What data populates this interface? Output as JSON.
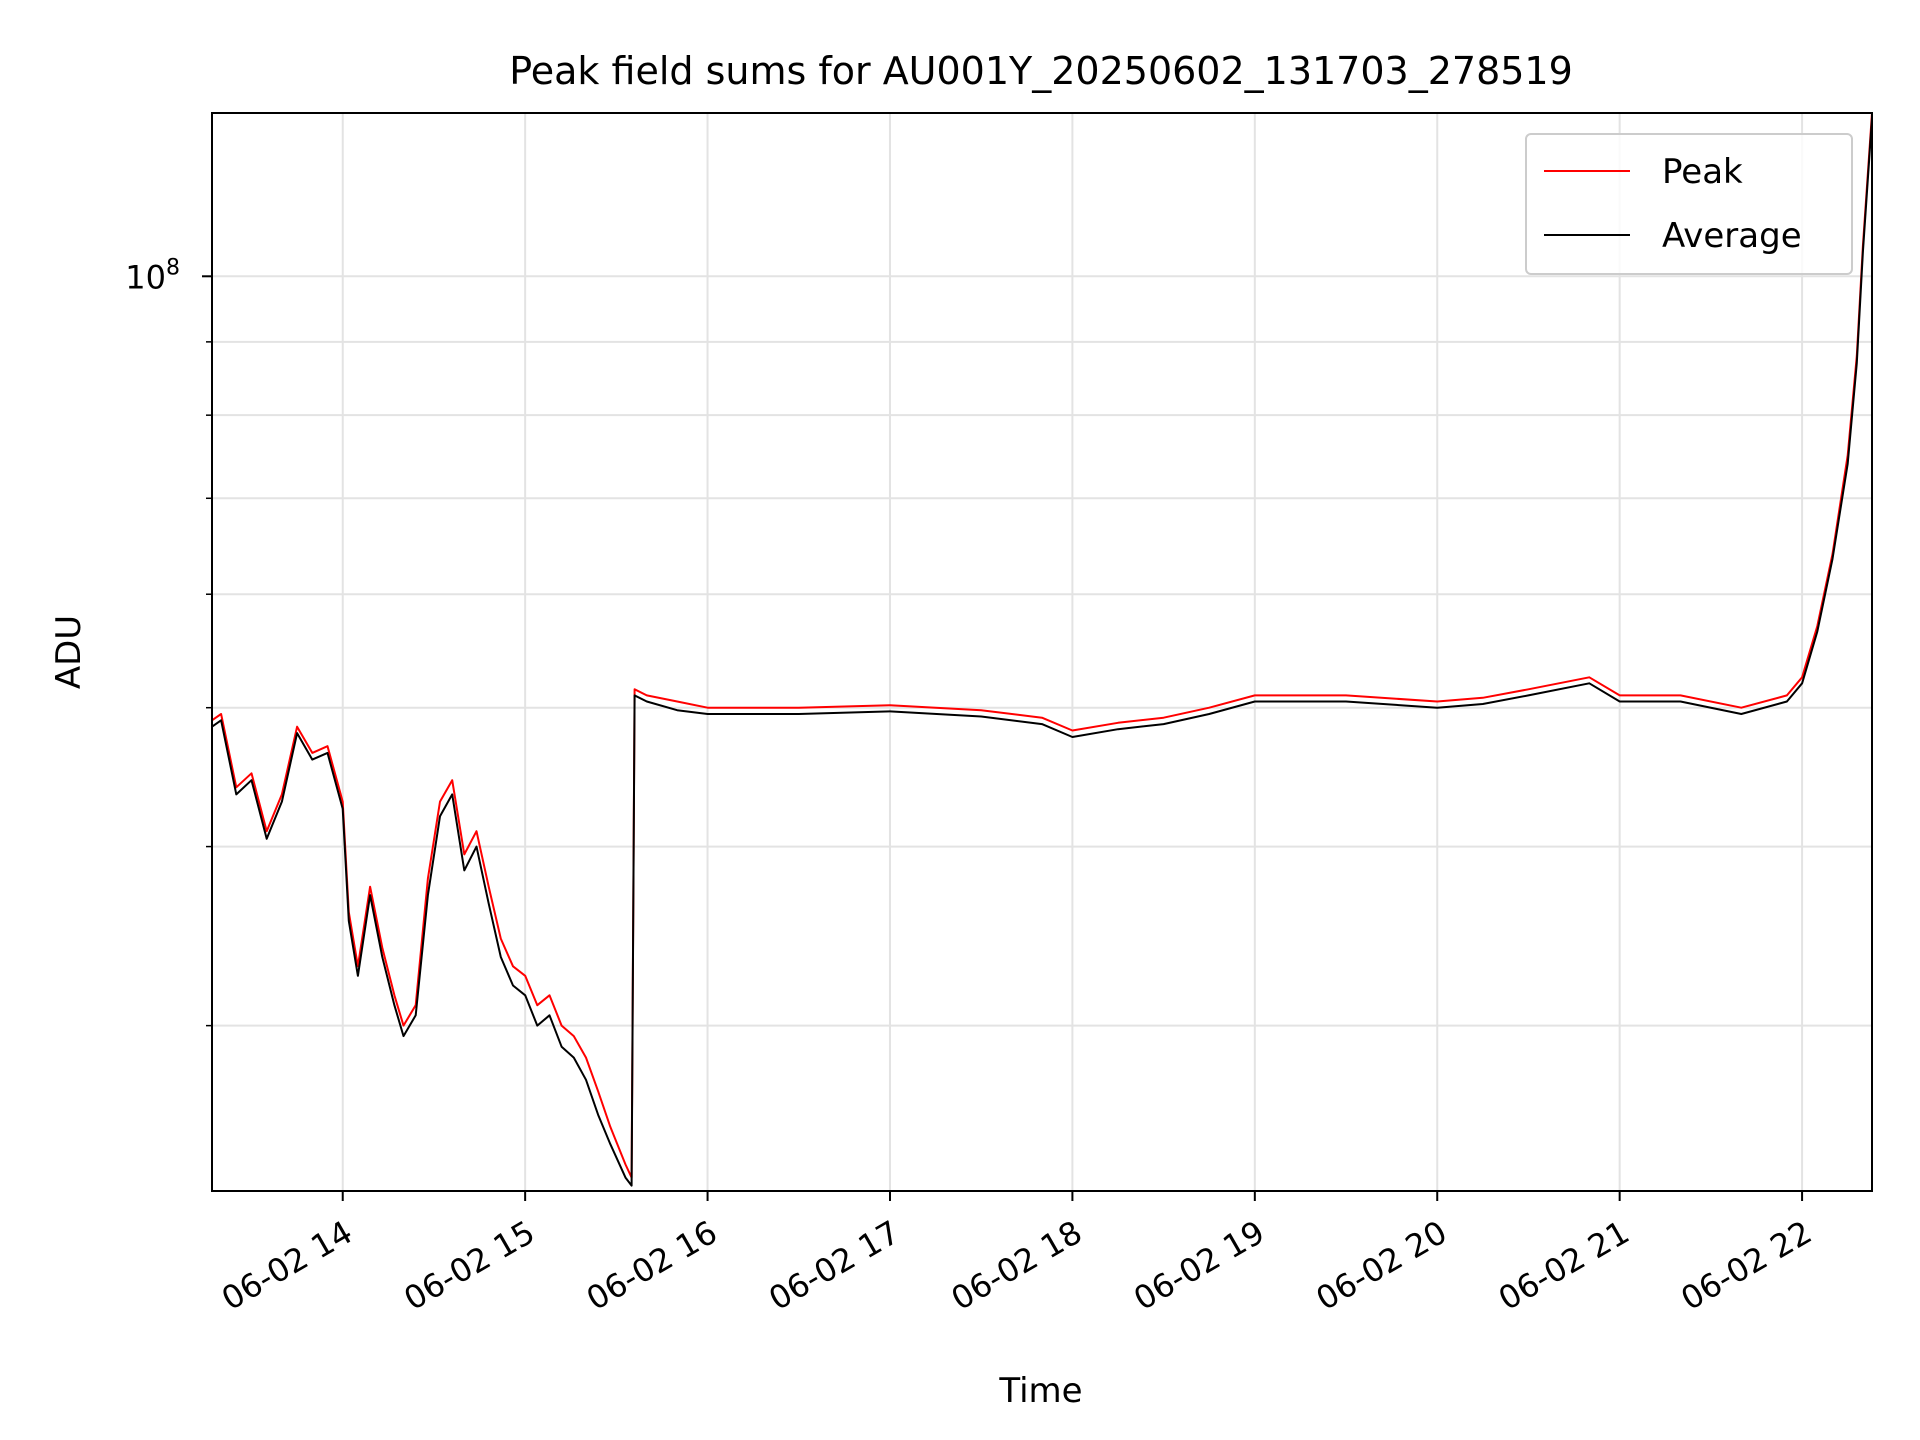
{
  "chart_data": {
    "type": "line",
    "title": "Peak field sums for AU001Y_20250602_131703_278519",
    "xlabel": "Time",
    "ylabel": "ADU",
    "yscale": "log",
    "xlim": [
      "2025-06-02T13:17",
      "2025-06-02T22:23"
    ],
    "ylim": [
      23000000,
      130000000
    ],
    "x_ticks": [
      "2025-06-02T14:00",
      "2025-06-02T15:00",
      "2025-06-02T16:00",
      "2025-06-02T17:00",
      "2025-06-02T18:00",
      "2025-06-02T19:00",
      "2025-06-02T20:00",
      "2025-06-02T21:00",
      "2025-06-02T22:00"
    ],
    "x_tick_labels": [
      "06-02 14",
      "06-02 15",
      "06-02 16",
      "06-02 17",
      "06-02 18",
      "06-02 19",
      "06-02 20",
      "06-02 21",
      "06-02 22"
    ],
    "y_tick_labels": [
      {
        "value": 100000000,
        "base": "10",
        "exp": "8"
      }
    ],
    "grid": true,
    "legend_position": "top-right",
    "series": [
      {
        "name": "Peak",
        "color": "#ff0000",
        "points": [
          [
            "2025-06-02T13:17",
            49000000
          ],
          [
            "2025-06-02T13:20",
            49500000
          ],
          [
            "2025-06-02T13:25",
            44000000
          ],
          [
            "2025-06-02T13:30",
            45000000
          ],
          [
            "2025-06-02T13:35",
            41000000
          ],
          [
            "2025-06-02T13:40",
            43500000
          ],
          [
            "2025-06-02T13:45",
            48500000
          ],
          [
            "2025-06-02T13:50",
            46500000
          ],
          [
            "2025-06-02T13:55",
            47000000
          ],
          [
            "2025-06-02T14:00",
            43000000
          ],
          [
            "2025-06-02T14:02",
            36000000
          ],
          [
            "2025-06-02T14:05",
            33000000
          ],
          [
            "2025-06-02T14:09",
            37500000
          ],
          [
            "2025-06-02T14:13",
            34000000
          ],
          [
            "2025-06-02T14:17",
            31500000
          ],
          [
            "2025-06-02T14:20",
            30000000
          ],
          [
            "2025-06-02T14:24",
            31000000
          ],
          [
            "2025-06-02T14:28",
            38000000
          ],
          [
            "2025-06-02T14:32",
            43000000
          ],
          [
            "2025-06-02T14:36",
            44500000
          ],
          [
            "2025-06-02T14:40",
            39500000
          ],
          [
            "2025-06-02T14:44",
            41000000
          ],
          [
            "2025-06-02T14:48",
            37500000
          ],
          [
            "2025-06-02T14:52",
            34500000
          ],
          [
            "2025-06-02T14:56",
            33000000
          ],
          [
            "2025-06-02T15:00",
            32500000
          ],
          [
            "2025-06-02T15:04",
            31000000
          ],
          [
            "2025-06-02T15:08",
            31500000
          ],
          [
            "2025-06-02T15:12",
            30000000
          ],
          [
            "2025-06-02T15:16",
            29500000
          ],
          [
            "2025-06-02T15:20",
            28500000
          ],
          [
            "2025-06-02T15:24",
            27000000
          ],
          [
            "2025-06-02T15:28",
            25500000
          ],
          [
            "2025-06-02T15:33",
            24000000
          ],
          [
            "2025-06-02T15:35",
            23500000
          ],
          [
            "2025-06-02T15:36",
            51500000
          ],
          [
            "2025-06-02T15:40",
            51000000
          ],
          [
            "2025-06-02T15:50",
            50500000
          ],
          [
            "2025-06-02T16:00",
            50000000
          ],
          [
            "2025-06-02T16:30",
            50000000
          ],
          [
            "2025-06-02T17:00",
            50200000
          ],
          [
            "2025-06-02T17:30",
            49800000
          ],
          [
            "2025-06-02T17:50",
            49200000
          ],
          [
            "2025-06-02T18:00",
            48200000
          ],
          [
            "2025-06-02T18:15",
            48800000
          ],
          [
            "2025-06-02T18:30",
            49200000
          ],
          [
            "2025-06-02T18:45",
            50000000
          ],
          [
            "2025-06-02T19:00",
            51000000
          ],
          [
            "2025-06-02T19:30",
            51000000
          ],
          [
            "2025-06-02T20:00",
            50500000
          ],
          [
            "2025-06-02T20:15",
            50800000
          ],
          [
            "2025-06-02T20:30",
            51500000
          ],
          [
            "2025-06-02T20:50",
            52500000
          ],
          [
            "2025-06-02T21:00",
            51000000
          ],
          [
            "2025-06-02T21:20",
            51000000
          ],
          [
            "2025-06-02T21:40",
            50000000
          ],
          [
            "2025-06-02T21:55",
            51000000
          ],
          [
            "2025-06-02T22:00",
            52500000
          ],
          [
            "2025-06-02T22:05",
            57000000
          ],
          [
            "2025-06-02T22:10",
            64000000
          ],
          [
            "2025-06-02T22:15",
            75000000
          ],
          [
            "2025-06-02T22:18",
            88000000
          ],
          [
            "2025-06-02T22:20",
            105000000
          ],
          [
            "2025-06-02T22:23",
            130000000
          ]
        ]
      },
      {
        "name": "Average",
        "color": "#000000",
        "points": [
          [
            "2025-06-02T13:17",
            48500000
          ],
          [
            "2025-06-02T13:20",
            49000000
          ],
          [
            "2025-06-02T13:25",
            43500000
          ],
          [
            "2025-06-02T13:30",
            44500000
          ],
          [
            "2025-06-02T13:35",
            40500000
          ],
          [
            "2025-06-02T13:40",
            43000000
          ],
          [
            "2025-06-02T13:45",
            48000000
          ],
          [
            "2025-06-02T13:50",
            46000000
          ],
          [
            "2025-06-02T13:55",
            46500000
          ],
          [
            "2025-06-02T14:00",
            42500000
          ],
          [
            "2025-06-02T14:02",
            35500000
          ],
          [
            "2025-06-02T14:05",
            32500000
          ],
          [
            "2025-06-02T14:09",
            37000000
          ],
          [
            "2025-06-02T14:13",
            33500000
          ],
          [
            "2025-06-02T14:17",
            31000000
          ],
          [
            "2025-06-02T14:20",
            29500000
          ],
          [
            "2025-06-02T14:24",
            30500000
          ],
          [
            "2025-06-02T14:28",
            37000000
          ],
          [
            "2025-06-02T14:32",
            42000000
          ],
          [
            "2025-06-02T14:36",
            43500000
          ],
          [
            "2025-06-02T14:40",
            38500000
          ],
          [
            "2025-06-02T14:44",
            40000000
          ],
          [
            "2025-06-02T14:48",
            36500000
          ],
          [
            "2025-06-02T14:52",
            33500000
          ],
          [
            "2025-06-02T14:56",
            32000000
          ],
          [
            "2025-06-02T15:00",
            31500000
          ],
          [
            "2025-06-02T15:04",
            30000000
          ],
          [
            "2025-06-02T15:08",
            30500000
          ],
          [
            "2025-06-02T15:12",
            29000000
          ],
          [
            "2025-06-02T15:16",
            28500000
          ],
          [
            "2025-06-02T15:20",
            27500000
          ],
          [
            "2025-06-02T15:24",
            26000000
          ],
          [
            "2025-06-02T15:28",
            24800000
          ],
          [
            "2025-06-02T15:33",
            23500000
          ],
          [
            "2025-06-02T15:35",
            23200000
          ],
          [
            "2025-06-02T15:36",
            51000000
          ],
          [
            "2025-06-02T15:40",
            50500000
          ],
          [
            "2025-06-02T15:50",
            49800000
          ],
          [
            "2025-06-02T16:00",
            49500000
          ],
          [
            "2025-06-02T16:30",
            49500000
          ],
          [
            "2025-06-02T17:00",
            49700000
          ],
          [
            "2025-06-02T17:30",
            49300000
          ],
          [
            "2025-06-02T17:50",
            48700000
          ],
          [
            "2025-06-02T18:00",
            47700000
          ],
          [
            "2025-06-02T18:15",
            48300000
          ],
          [
            "2025-06-02T18:30",
            48700000
          ],
          [
            "2025-06-02T18:45",
            49500000
          ],
          [
            "2025-06-02T19:00",
            50500000
          ],
          [
            "2025-06-02T19:30",
            50500000
          ],
          [
            "2025-06-02T20:00",
            50000000
          ],
          [
            "2025-06-02T20:15",
            50300000
          ],
          [
            "2025-06-02T20:30",
            51000000
          ],
          [
            "2025-06-02T20:50",
            52000000
          ],
          [
            "2025-06-02T21:00",
            50500000
          ],
          [
            "2025-06-02T21:20",
            50500000
          ],
          [
            "2025-06-02T21:40",
            49500000
          ],
          [
            "2025-06-02T21:55",
            50500000
          ],
          [
            "2025-06-02T22:00",
            52000000
          ],
          [
            "2025-06-02T22:05",
            56500000
          ],
          [
            "2025-06-02T22:10",
            63500000
          ],
          [
            "2025-06-02T22:15",
            74000000
          ],
          [
            "2025-06-02T22:18",
            87000000
          ],
          [
            "2025-06-02T22:20",
            104000000
          ],
          [
            "2025-06-02T22:23",
            129000000
          ]
        ]
      }
    ]
  }
}
